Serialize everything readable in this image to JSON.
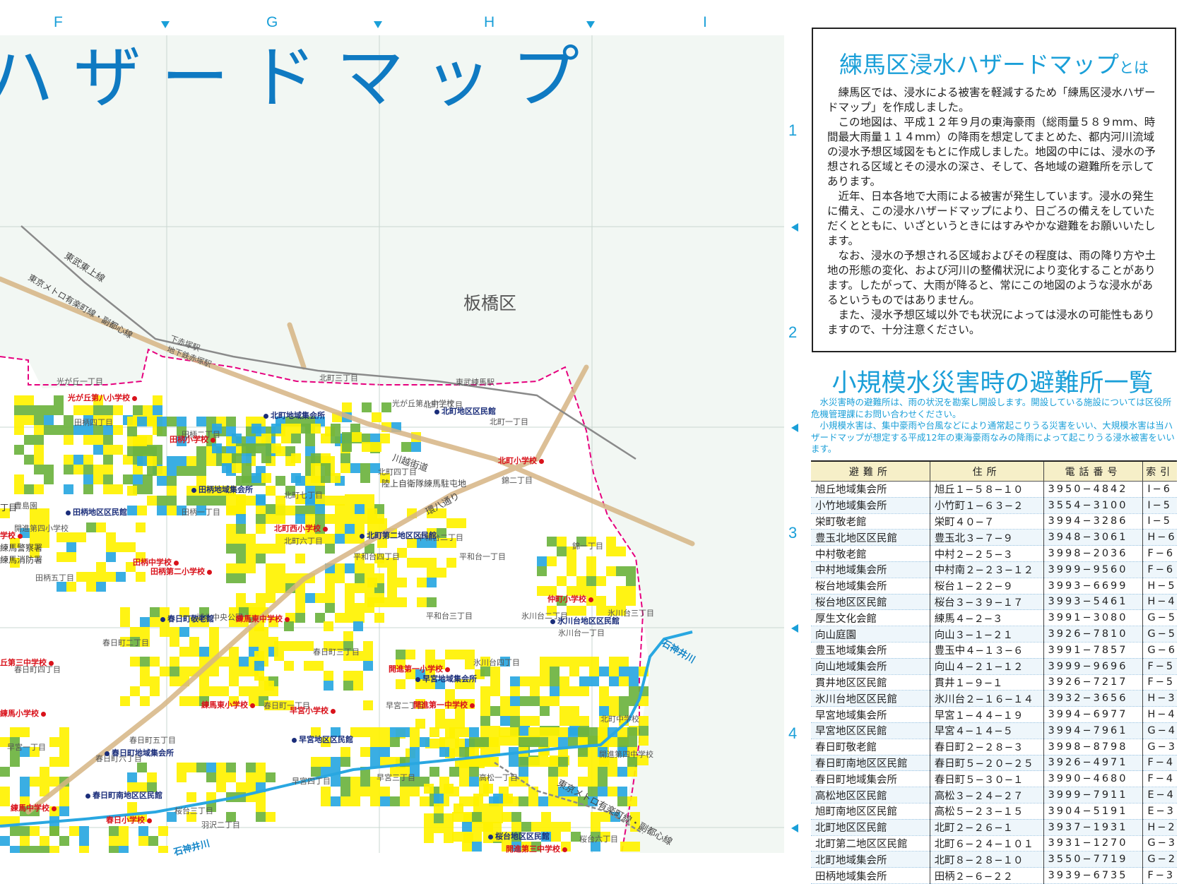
{
  "map": {
    "title": "ハザードマップ",
    "ward_label": "板橋区",
    "grid_columns": [
      "F",
      "G",
      "H",
      "I"
    ],
    "grid_rows": [
      "1",
      "2",
      "3",
      "4"
    ],
    "railways": [
      "東武東上線",
      "東京メトロ有楽町線・副都心線",
      "東京メトロ有楽町線・副都心線"
    ],
    "stations": [
      "下赤塚駅",
      "地下鉄赤塚駅",
      "東武練馬駅"
    ],
    "roads": [
      "川越街道",
      "環八通り",
      "陸上自衛隊練馬駐屯地"
    ],
    "rivers": [
      "石神井川",
      "石神井川"
    ],
    "places": [
      "光が丘一丁目",
      "田柄四丁目",
      "田柄二丁目",
      "田柄一丁目",
      "田柄五丁目",
      "北町三丁目",
      "北町二丁目",
      "北町一丁目",
      "北町四丁目",
      "北町七丁目",
      "北町六丁目",
      "錦二丁目",
      "錦一丁目",
      "平和台四丁目",
      "平和台二丁目",
      "平和台一丁目",
      "平和台三丁目",
      "氷川台二丁目",
      "氷川台一丁目",
      "氷川台四丁目",
      "氷川台三丁目",
      "城北中央公園",
      "春日町二丁目",
      "春日町四丁目",
      "春日町六丁目",
      "春日町五丁目",
      "春日町三丁目",
      "春日町一丁目",
      "早宮二丁目",
      "早宮四丁目",
      "早宮一丁目",
      "早宮三丁目",
      "高松一丁目",
      "桜台六丁目",
      "桜台三丁目",
      "羽沢二丁目",
      "豊島園",
      "光が丘第八中学校",
      "北町中学校",
      "開進第四中学校",
      "開進第四小学校"
    ],
    "partial_labels": [
      "練馬警察署",
      "練馬消防署",
      "丁目"
    ],
    "shelters": [
      {
        "name": "光が丘第八小学校",
        "kind": "school"
      },
      {
        "name": "田柄小学校",
        "kind": "school"
      },
      {
        "name": "北町地域集会所",
        "kind": "center"
      },
      {
        "name": "北町地区区民館",
        "kind": "center"
      },
      {
        "name": "北町小学校",
        "kind": "school"
      },
      {
        "name": "田柄地域集会所",
        "kind": "center"
      },
      {
        "name": "田柄地区区民館",
        "kind": "center"
      },
      {
        "name": "北町西小学校",
        "kind": "school"
      },
      {
        "name": "北町第二地区区民館",
        "kind": "center"
      },
      {
        "name": "田柄中学校",
        "kind": "school"
      },
      {
        "name": "田柄第二小学校",
        "kind": "school"
      },
      {
        "name": "仲町小学校",
        "kind": "school"
      },
      {
        "name": "春日町敬老館",
        "kind": "center"
      },
      {
        "name": "練馬東中学校",
        "kind": "school"
      },
      {
        "name": "氷川台地区区民館",
        "kind": "center"
      },
      {
        "name": "開進第一小学校",
        "kind": "school"
      },
      {
        "name": "早宮地域集会所",
        "kind": "center"
      },
      {
        "name": "練馬東小学校",
        "kind": "school"
      },
      {
        "name": "早宮小学校",
        "kind": "school"
      },
      {
        "name": "開進第一中学校",
        "kind": "school"
      },
      {
        "name": "早宮地区区民館",
        "kind": "center"
      },
      {
        "name": "春日町地域集会所",
        "kind": "center"
      },
      {
        "name": "春日町南地区区民館",
        "kind": "center"
      },
      {
        "name": "練馬中学校",
        "kind": "school"
      },
      {
        "name": "春日小学校",
        "kind": "school"
      },
      {
        "name": "桜台地区区民館",
        "kind": "center"
      },
      {
        "name": "開進第三中学校",
        "kind": "school"
      },
      {
        "name": "学校",
        "kind": "school"
      },
      {
        "name": "丘第三中学校",
        "kind": "school"
      },
      {
        "name": "練馬小学校",
        "kind": "school"
      }
    ],
    "colors": {
      "yellow": "#fff200",
      "green": "#6db33f",
      "blue": "#29a7e1",
      "boundary": "#e6007e",
      "road": "#d8b98a",
      "accent": "#1a9fd8",
      "title": "#0f7ac2"
    }
  },
  "info": {
    "title_main": "練馬区浸水ハザードマップ",
    "title_suffix": "とは",
    "paragraphs": [
      "練馬区では、浸水による被害を軽減するため「練馬区浸水ハザードマップ」を作成しました。",
      "この地図は、平成１２年９月の東海豪雨（総雨量５８９mm、時間最大雨量１１４mm）の降雨を想定してまとめた、都内河川流域の浸水予想区域図をもとに作成しました。地図の中には、浸水の予想される区域とその浸水の深さ、そして、各地域の避難所を示してあります。",
      "近年、日本各地で大雨による被害が発生しています。浸水の発生に備え、この浸水ハザードマップにより、日ごろの備えをしていただくとともに、いざというときにはすみやかな避難をお願いいたします。",
      "なお、浸水の予想される区域およびその程度は、雨の降り方や土地の形態の変化、および河川の整備状況により変化することがあります。したがって、大雨が降ると、常にこの地図のような浸水があるというものではありません。",
      "また、浸水予想区域以外でも状況によっては浸水の可能性もありますので、十分注意ください。"
    ]
  },
  "shelter_list": {
    "title": "小規模水災害時の避難所一覧",
    "notes": [
      "水災害時の避難所は、雨の状況を勘案し開設します。開設している施設については区役所危機管理課にお問い合わせください。",
      "小規模水害は、集中豪雨や台風などにより通常起こりうる災害をいい、大規模水害は当ハザードマップが想定する平成12年の東海豪雨なみの降雨によって起こりうる浸水被害をいいます。"
    ],
    "columns": [
      "避難所",
      "住所",
      "電話番号",
      "索引"
    ],
    "rows": [
      [
        "旭丘地域集会所",
        "旭丘１−５８−１０",
        "3950−4842",
        "I−6"
      ],
      [
        "小竹地域集会所",
        "小竹町１−６３−２",
        "3554−3100",
        "I−5"
      ],
      [
        "栄町敬老館",
        "栄町４０−７",
        "3994−3286",
        "I−5"
      ],
      [
        "豊玉北地区区民館",
        "豊玉北３−７−９",
        "3948−3061",
        "H−6"
      ],
      [
        "中村敬老館",
        "中村２−２５−３",
        "3998−2036",
        "F−6"
      ],
      [
        "中村地域集会所",
        "中村南２−２３−１２",
        "3999−9560",
        "F−6"
      ],
      [
        "桜台地域集会所",
        "桜台１−２２−９",
        "3993−6699",
        "H−5"
      ],
      [
        "桜台地区区民館",
        "桜台３−３９−１７",
        "3993−5461",
        "H−4"
      ],
      [
        "厚生文化会館",
        "練馬４−２−３",
        "3991−3080",
        "G−5"
      ],
      [
        "向山庭園",
        "向山３−１−２１",
        "3926−7810",
        "G−5"
      ],
      [
        "豊玉地域集会所",
        "豊玉中４−１３−６",
        "3991−7857",
        "G−6"
      ],
      [
        "向山地域集会所",
        "向山４−２１−１２",
        "3999−9696",
        "F−5"
      ],
      [
        "貫井地区区民館",
        "貫井１−９−１",
        "3926−7217",
        "F−5"
      ],
      [
        "氷川台地区区民館",
        "氷川台２−１６−１４",
        "3932−3656",
        "H−3"
      ],
      [
        "早宮地域集会所",
        "早宮１−４４−１９",
        "3994−6977",
        "H−4"
      ],
      [
        "早宮地区区民館",
        "早宮４−１４−５",
        "3994−7961",
        "G−4"
      ],
      [
        "春日町敬老館",
        "春日町２−２８−３",
        "3998−8798",
        "G−3"
      ],
      [
        "春日町南地区区民館",
        "春日町５−２０−２５",
        "3926−4971",
        "F−4"
      ],
      [
        "春日町地域集会所",
        "春日町５−３０−１",
        "3990−4680",
        "F−4"
      ],
      [
        "高松地区区民館",
        "高松３−２４−２７",
        "3999−7911",
        "E−4"
      ],
      [
        "旭町南地区区民館",
        "高松５−２３−１５",
        "3904−5191",
        "E−3"
      ],
      [
        "北町地区区民館",
        "北町２−２６−１",
        "3937−1931",
        "H−2"
      ],
      [
        "北町第二地区区民館",
        "北町６−２４−１０１",
        "3931−1270",
        "G−3"
      ],
      [
        "北町地域集会所",
        "北町８−２８−１０",
        "3550−7719",
        "G−2"
      ],
      [
        "田柄地域集会所",
        "田柄２−６−２２",
        "3939−6735",
        "F−3"
      ]
    ]
  }
}
